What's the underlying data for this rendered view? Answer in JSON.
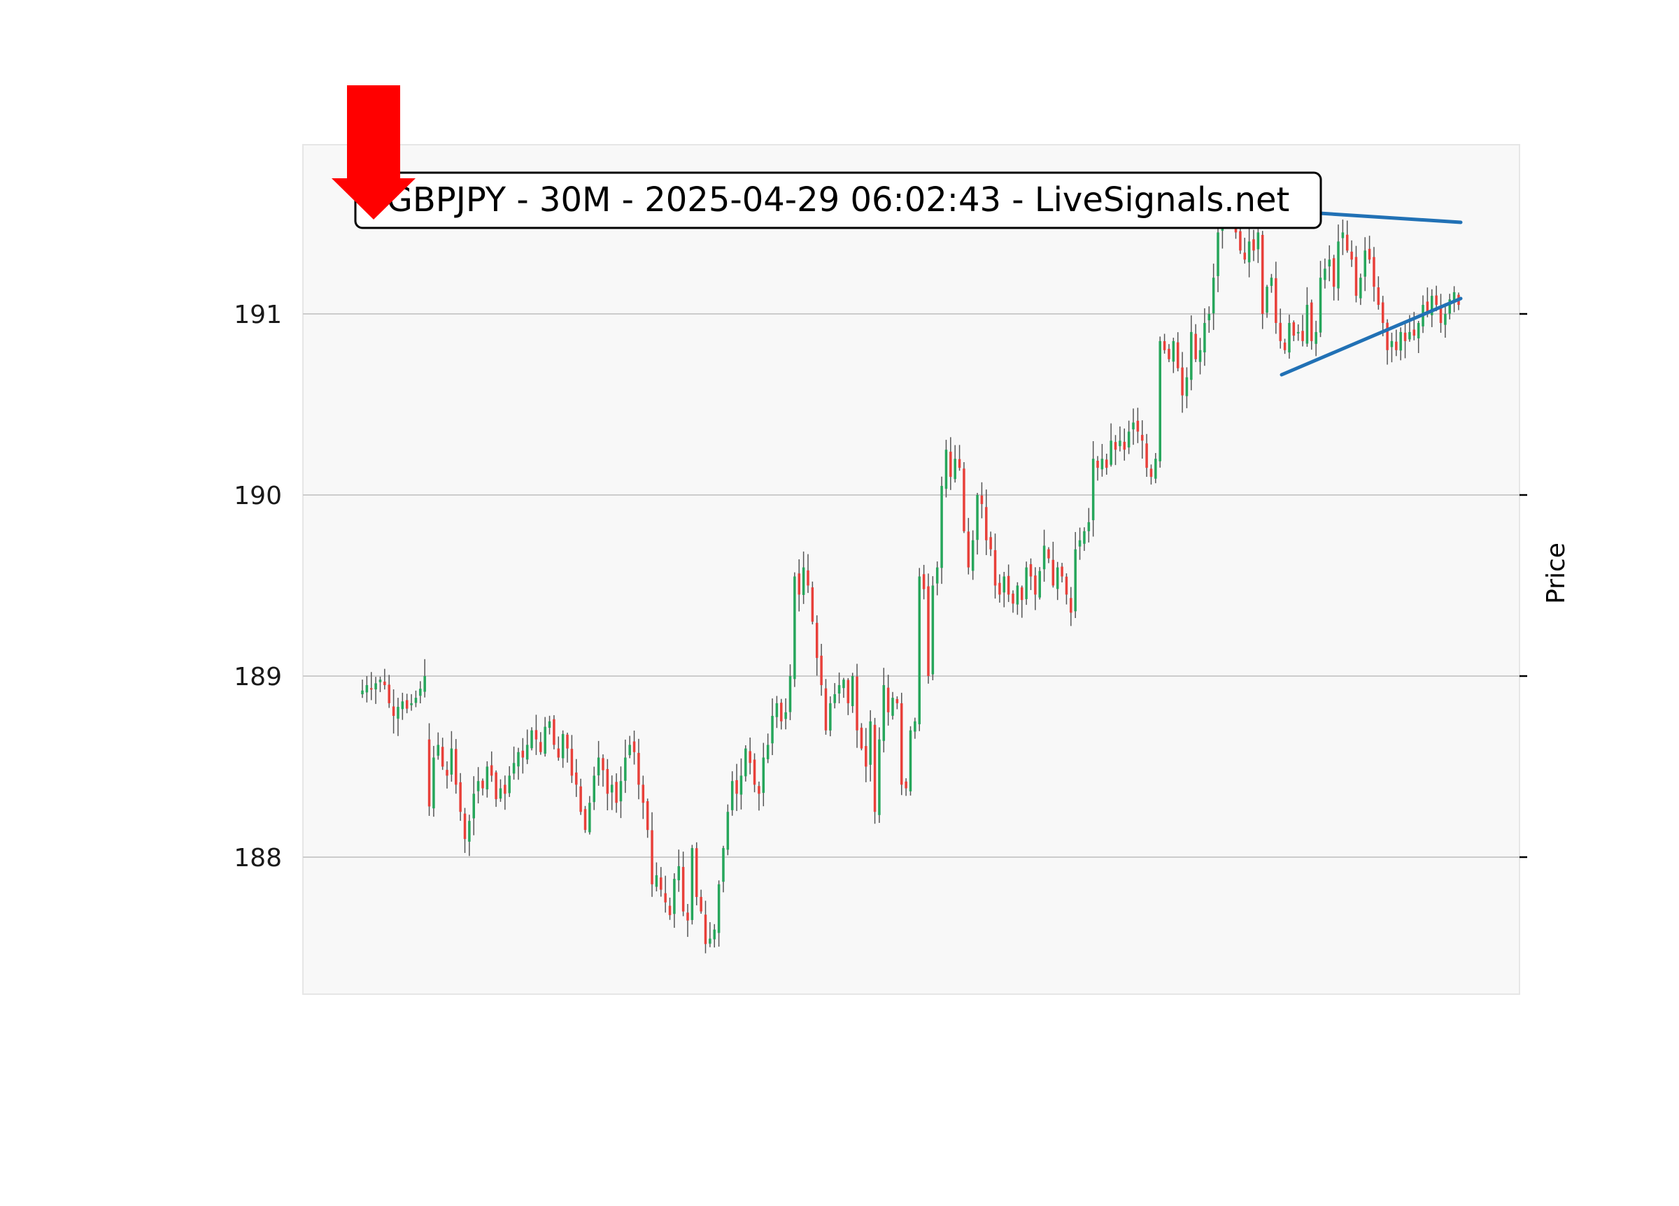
{
  "chart_data": {
    "type": "candlestick",
    "title": "GBPJPY - 30M - 2025-04-29 06:02:43 - LiveSignals.net",
    "ylabel": "Price",
    "xlabel": "",
    "ylim": [
      187.25,
      191.95
    ],
    "yticks": [
      188,
      189,
      190,
      191
    ],
    "grid": "horizontal",
    "signal": "sell",
    "colors": {
      "up": "#26a65b",
      "down": "#e8403a",
      "wick": "#555555",
      "trendline": "#2171b5",
      "arrow": "#ff0000",
      "plot_bg": "#f8f8f8",
      "grid": "#cccccc"
    },
    "closes": [
      188.92,
      188.95,
      188.93,
      188.96,
      188.98,
      188.95,
      188.85,
      188.78,
      188.83,
      188.86,
      188.82,
      188.85,
      188.88,
      188.93,
      189.0,
      188.28,
      188.55,
      188.62,
      188.5,
      188.45,
      188.6,
      188.4,
      188.25,
      188.1,
      188.2,
      188.35,
      188.42,
      188.38,
      188.5,
      188.45,
      188.32,
      188.38,
      188.35,
      188.45,
      188.52,
      188.58,
      188.55,
      188.62,
      188.7,
      188.65,
      188.58,
      188.72,
      188.75,
      188.62,
      188.55,
      188.68,
      188.6,
      188.45,
      188.4,
      188.25,
      188.15,
      188.3,
      188.45,
      188.55,
      188.48,
      188.35,
      188.4,
      188.3,
      188.42,
      188.55,
      188.62,
      188.58,
      188.4,
      188.3,
      188.15,
      187.85,
      187.9,
      187.82,
      187.75,
      187.68,
      187.88,
      187.95,
      187.7,
      187.65,
      188.05,
      187.78,
      187.7,
      187.52,
      187.55,
      187.6,
      187.85,
      188.05,
      188.25,
      188.42,
      188.35,
      188.45,
      188.6,
      188.52,
      188.4,
      188.35,
      188.55,
      188.62,
      188.78,
      188.85,
      188.75,
      188.8,
      189.0,
      189.55,
      189.45,
      189.6,
      189.5,
      189.3,
      189.1,
      188.95,
      188.7,
      188.85,
      188.9,
      188.95,
      188.98,
      188.85,
      189.0,
      188.7,
      188.6,
      188.5,
      188.75,
      188.25,
      188.65,
      188.95,
      188.8,
      188.88,
      188.85,
      188.4,
      188.38,
      188.7,
      188.75,
      189.55,
      189.48,
      189.0,
      189.5,
      189.6,
      190.05,
      190.25,
      190.1,
      190.2,
      190.15,
      189.8,
      189.6,
      189.75,
      190.0,
      189.95,
      189.75,
      189.7,
      189.5,
      189.45,
      189.55,
      189.45,
      189.4,
      189.5,
      189.42,
      189.6,
      189.55,
      189.45,
      189.58,
      189.72,
      189.65,
      189.5,
      189.6,
      189.55,
      189.45,
      189.35,
      189.7,
      189.75,
      189.8,
      189.85,
      190.2,
      190.15,
      190.2,
      190.15,
      190.3,
      190.25,
      190.3,
      190.25,
      190.35,
      190.4,
      190.35,
      190.3,
      190.15,
      190.1,
      190.2,
      190.85,
      190.8,
      190.75,
      190.85,
      190.7,
      190.55,
      190.65,
      190.9,
      190.75,
      190.8,
      190.95,
      191.0,
      191.2,
      191.45,
      191.6,
      191.65,
      191.55,
      191.45,
      191.35,
      191.3,
      191.4,
      191.35,
      191.45,
      191.0,
      191.15,
      191.2,
      190.95,
      190.85,
      190.8,
      190.95,
      190.88,
      190.9,
      190.85,
      191.05,
      190.85,
      190.9,
      191.2,
      191.25,
      191.3,
      191.15,
      191.4,
      191.45,
      191.35,
      191.3,
      191.1,
      191.2,
      191.35,
      191.3,
      191.15,
      191.05,
      190.95,
      190.8,
      190.85,
      190.8,
      190.9,
      190.85,
      190.9,
      190.88,
      190.95,
      191.05,
      191.0,
      191.1,
      191.05,
      190.95,
      191.0,
      191.08,
      191.12,
      191.05
    ]
  }
}
